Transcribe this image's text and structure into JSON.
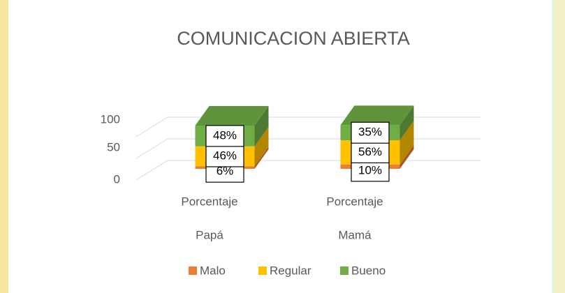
{
  "chart_data": {
    "type": "bar3d_stacked",
    "title": "COMUNICACION ABIERTA",
    "categories": [
      "Porcentaje",
      "Porcentaje"
    ],
    "groups": [
      "Papá",
      "Mamá"
    ],
    "series": [
      {
        "name": "Malo",
        "color": "#ed7d31",
        "values": [
          6,
          10
        ],
        "value_labels": [
          "6%",
          "10%"
        ]
      },
      {
        "name": "Regular",
        "color": "#ffc000",
        "values": [
          46,
          56
        ],
        "value_labels": [
          "46%",
          "56%"
        ]
      },
      {
        "name": "Bueno",
        "color": "#70ad47",
        "values": [
          48,
          35
        ],
        "value_labels": [
          "48%",
          "35%"
        ]
      }
    ],
    "ylim": [
      0,
      100
    ],
    "yticks": [
      0,
      50,
      100
    ],
    "grid": true,
    "legend": "bottom"
  }
}
